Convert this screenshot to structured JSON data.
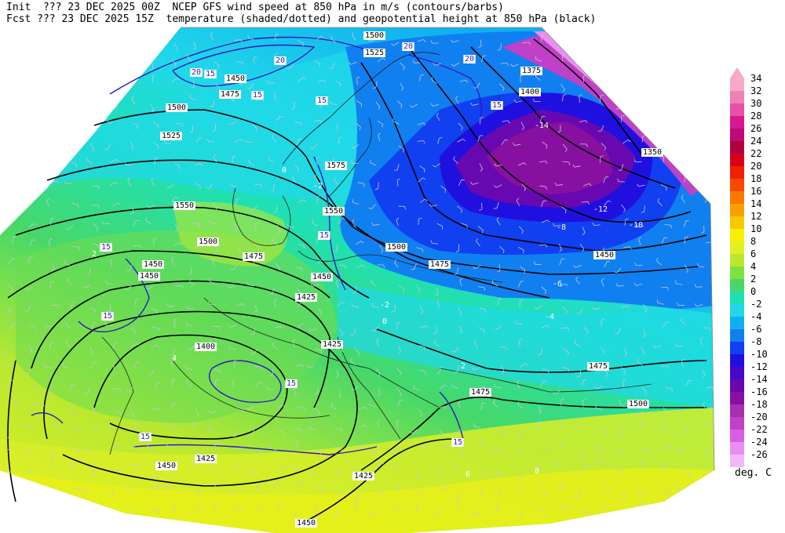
{
  "header": {
    "line1": "Init  ??? 23 DEC 2025 00Z  NCEP GFS wind speed at 850 hPa in m/s (contours/barbs)",
    "line2": "Fcst ??? 23 DEC 2025 15Z  temperature (shaded/dotted) and geopotential height at 850 hPa (black)"
  },
  "colorbar": {
    "unit": "deg. C",
    "levels": [
      {
        "value": "34",
        "color": "#f8a8c8"
      },
      {
        "value": "32",
        "color": "#f080b8"
      },
      {
        "value": "30",
        "color": "#e850a8"
      },
      {
        "value": "28",
        "color": "#d81890"
      },
      {
        "value": "26",
        "color": "#c00878"
      },
      {
        "value": "24",
        "color": "#b00040"
      },
      {
        "value": "22",
        "color": "#d80018"
      },
      {
        "value": "20",
        "color": "#f02000"
      },
      {
        "value": "18",
        "color": "#f84800"
      },
      {
        "value": "16",
        "color": "#f87800"
      },
      {
        "value": "14",
        "color": "#f8a000"
      },
      {
        "value": "12",
        "color": "#f8c800"
      },
      {
        "value": "10",
        "color": "#f8f000"
      },
      {
        "value": "8",
        "color": "#e0f020"
      },
      {
        "value": "6",
        "color": "#b8e830"
      },
      {
        "value": "4",
        "color": "#80e040"
      },
      {
        "value": "2",
        "color": "#48d868"
      },
      {
        "value": "0",
        "color": "#20e0b0"
      },
      {
        "value": "-2",
        "color": "#20d8e8"
      },
      {
        "value": "-4",
        "color": "#10b0f0"
      },
      {
        "value": "-6",
        "color": "#1080f0"
      },
      {
        "value": "-8",
        "color": "#1040f0"
      },
      {
        "value": "-10",
        "color": "#2010e0"
      },
      {
        "value": "-12",
        "color": "#4808c8"
      },
      {
        "value": "-14",
        "color": "#6808b0"
      },
      {
        "value": "-16",
        "color": "#8810a0"
      },
      {
        "value": "-18",
        "color": "#a830b0"
      },
      {
        "value": "-20",
        "color": "#c040c8"
      },
      {
        "value": "-22",
        "color": "#d860e0"
      },
      {
        "value": "-24",
        "color": "#e890f0"
      },
      {
        "value": "-26",
        "color": "#f0b8f8"
      }
    ]
  },
  "height_labels": [
    "1350",
    "1375",
    "1400",
    "1425",
    "1450",
    "1475",
    "1500",
    "1525",
    "1550",
    "1575"
  ],
  "wind_labels": [
    "15",
    "20"
  ],
  "temp_labels": [
    "-12",
    "-14",
    "-10",
    "-8",
    "-6",
    "-4",
    "-2",
    "0",
    "2",
    "4",
    "6",
    "8"
  ]
}
